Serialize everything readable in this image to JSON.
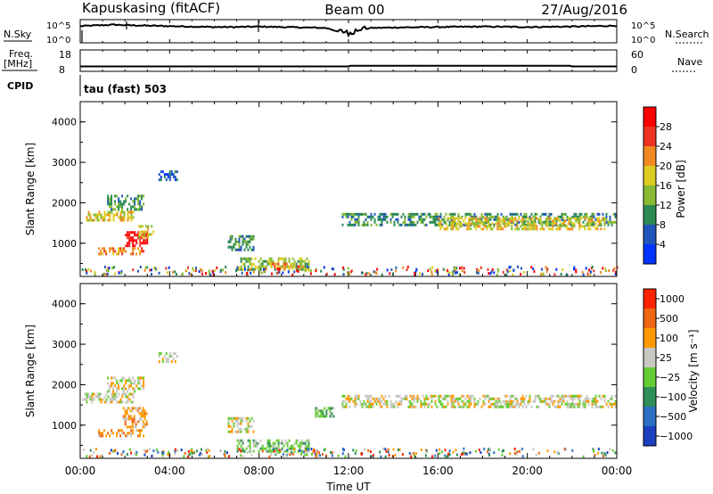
{
  "header": {
    "station": "Kapuskasing (fitACF)",
    "beam": "Beam 00",
    "date": "27/Aug/2016"
  },
  "labels": {
    "nsky": "N.Sky",
    "nsearch": "N.Search",
    "freq": "Freq.",
    "mhz": "[MHz]",
    "nave": "Nave",
    "cpid": "CPID",
    "cpid_value": "tau (fast) 503",
    "xlabel": "Time UT",
    "ylabel": "Slant Range [km]"
  },
  "top_ticks": {
    "noise_left": [
      "10^5",
      "10^0"
    ],
    "noise_right": [
      "10^5",
      "10^0"
    ],
    "freq_left": [
      "18",
      "8"
    ],
    "nave_right": [
      "60",
      "0"
    ]
  },
  "chart_data": [
    {
      "type": "line",
      "name": "noise-panel",
      "x_range_hours": [
        0,
        24
      ],
      "series": [
        {
          "name": "N.Sky",
          "x": [
            0,
            0.5,
            1,
            1.5,
            2,
            3,
            4,
            5,
            6,
            7,
            8,
            9,
            10,
            11,
            11.5,
            12,
            12.5,
            13,
            14,
            16,
            18,
            20,
            22,
            24
          ],
          "y": [
            3.6,
            3.7,
            3.8,
            3.9,
            3.8,
            3.7,
            3.6,
            3.5,
            3.4,
            3.4,
            3.5,
            3.4,
            3.3,
            3.2,
            2.5,
            2.2,
            2.8,
            3.2,
            3.3,
            3.4,
            3.5,
            3.4,
            3.5,
            3.7
          ]
        }
      ]
    },
    {
      "type": "line",
      "name": "frequency-panel",
      "x_range_hours": [
        0,
        24
      ],
      "series": [
        {
          "name": "Freq.",
          "x": [
            0,
            12,
            12.1,
            21.9,
            22,
            24
          ],
          "y": [
            10.3,
            10.3,
            10.6,
            10.6,
            10.3,
            10.3
          ]
        }
      ]
    },
    {
      "type": "heatmap",
      "name": "power-panel",
      "xlabel": "Time UT",
      "ylabel": "Slant Range [km]",
      "xlim": [
        0,
        24
      ],
      "ylim": [
        180,
        4500
      ],
      "x_ticks": [
        "00:00",
        "04:00",
        "08:00",
        "12:00",
        "16:00",
        "20:00",
        "00:00"
      ],
      "y_ticks": [
        1000,
        2000,
        3000,
        4000
      ],
      "colorbar": {
        "label": "Power [dB]",
        "ticks": [
          "4",
          "8",
          "12",
          "16",
          "20",
          "24",
          "28"
        ],
        "colors": [
          "#0033ff",
          "#2255bb",
          "#2a8a52",
          "#88bb33",
          "#ddcc22",
          "#f08a20",
          "#ee3322",
          "#ff0000"
        ]
      },
      "regions": [
        {
          "t0": 0.1,
          "t1": 2.4,
          "r0": 1550,
          "r1": 1800,
          "level": 4
        },
        {
          "t0": 1.2,
          "t1": 2.9,
          "r0": 1800,
          "r1": 2200,
          "level": 2
        },
        {
          "t0": 2.0,
          "t1": 3.0,
          "r0": 900,
          "r1": 1300,
          "level": 7
        },
        {
          "t0": 0.8,
          "t1": 2.9,
          "r0": 700,
          "r1": 900,
          "level": 5
        },
        {
          "t0": 2.6,
          "t1": 3.3,
          "r0": 1150,
          "r1": 1450,
          "level": 4
        },
        {
          "t0": 3.5,
          "t1": 4.4,
          "r0": 2550,
          "r1": 2800,
          "level": 1
        },
        {
          "t0": 6.6,
          "t1": 7.8,
          "r0": 800,
          "r1": 1200,
          "level": 2
        },
        {
          "t0": 7.0,
          "t1": 10.3,
          "r0": 350,
          "r1": 650,
          "level": 3
        },
        {
          "t0": 8.5,
          "t1": 10.0,
          "r0": 380,
          "r1": 520,
          "level": 5
        },
        {
          "t0": 11.7,
          "t1": 24.0,
          "r0": 1400,
          "r1": 1750,
          "level": 2
        },
        {
          "t0": 16.0,
          "t1": 23.5,
          "r0": 1350,
          "r1": 1650,
          "level": 4
        }
      ]
    },
    {
      "type": "heatmap",
      "name": "velocity-panel",
      "xlabel": "Time UT",
      "ylabel": "Slant Range [km]",
      "xlim": [
        0,
        24
      ],
      "ylim": [
        180,
        4500
      ],
      "x_ticks": [
        "00:00",
        "04:00",
        "08:00",
        "12:00",
        "16:00",
        "20:00",
        "00:00"
      ],
      "y_ticks": [
        1000,
        2000,
        3000,
        4000
      ],
      "colorbar": {
        "label": "Velocity [m s⁻¹]",
        "ticks": [
          "1000",
          "500",
          "100",
          "25",
          "−25",
          "−100",
          "−500",
          "−1000"
        ],
        "colors": [
          "#1a3fbf",
          "#2b6fc4",
          "#2e8f58",
          "#66cc33",
          "#c8c8c2",
          "#ff9900",
          "#ee6611",
          "#ff2200"
        ]
      },
      "regions": [
        {
          "t0": 0.1,
          "t1": 2.4,
          "r0": 1550,
          "r1": 1800,
          "level": 4
        },
        {
          "t0": 1.2,
          "t1": 2.9,
          "r0": 1800,
          "r1": 2200,
          "level": 4
        },
        {
          "t0": 1.9,
          "t1": 3.0,
          "r0": 900,
          "r1": 1450,
          "level": 5
        },
        {
          "t0": 0.8,
          "t1": 2.9,
          "r0": 700,
          "r1": 900,
          "level": 5
        },
        {
          "t0": 3.5,
          "t1": 4.4,
          "r0": 2550,
          "r1": 2800,
          "level": 4
        },
        {
          "t0": 6.6,
          "t1": 7.8,
          "r0": 800,
          "r1": 1200,
          "level": 4
        },
        {
          "t0": 7.0,
          "t1": 10.3,
          "r0": 350,
          "r1": 650,
          "level": 3
        },
        {
          "t0": 10.5,
          "t1": 11.4,
          "r0": 1200,
          "r1": 1450,
          "level": 3
        },
        {
          "t0": 11.7,
          "t1": 24.0,
          "r0": 1400,
          "r1": 1750,
          "level": 4
        }
      ]
    }
  ]
}
